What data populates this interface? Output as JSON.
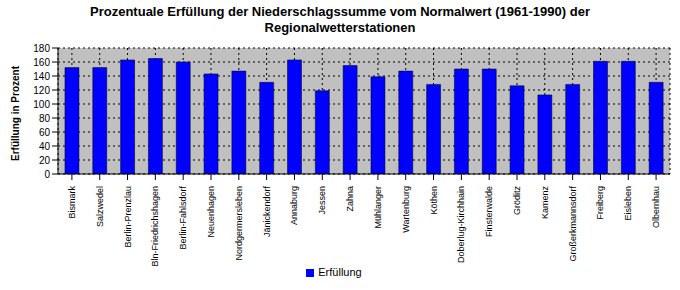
{
  "chart_data": {
    "type": "bar",
    "title": "Prozentuale Erfüllung der Niederschlagssumme vom Normalwert (1961-1990) der Regionalwetterstationen",
    "y_label": "Erfüllung in Prozent",
    "categories": [
      "Bismark",
      "Salzwedel",
      "Berlin-Prenzlau",
      "Bln-Friedrichshagen",
      "Berlin-Fahlsdorf",
      "Neuenhagen",
      "Nordgermersleben",
      "Jänickendorf",
      "Annaburg",
      "Jessen",
      "Zahna",
      "Mühlanger",
      "Wartenburg",
      "Köthen",
      "Doberlug-Kirchhain",
      "Finsterwalde",
      "Gröditz",
      "Kamenz",
      "Großerkmannsdorf",
      "Freiberg",
      "Eisleben",
      "Olbernhau"
    ],
    "series": [
      {
        "name": "Erfüllung",
        "color": "#0000ff",
        "values": [
          152,
          152,
          163,
          165,
          160,
          143,
          147,
          131,
          163,
          119,
          155,
          139,
          147,
          128,
          150,
          150,
          126,
          113,
          128,
          161,
          161,
          131
        ]
      }
    ],
    "ylim": [
      0,
      180
    ],
    "yticks": [
      0,
      20,
      40,
      60,
      80,
      100,
      120,
      140,
      160,
      180
    ],
    "grid": true,
    "legend": "bottom"
  }
}
